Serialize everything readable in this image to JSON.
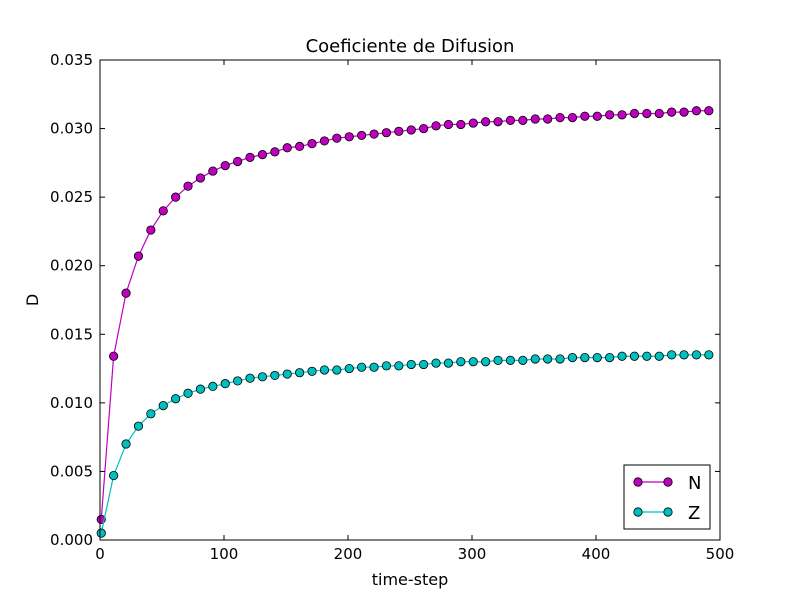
{
  "chart_data": {
    "type": "line",
    "title": "Coeficiente de Difusion",
    "xlabel": "time-step",
    "ylabel": "D",
    "xlim": [
      0,
      500
    ],
    "ylim": [
      0,
      0.035
    ],
    "xticks": [
      0,
      100,
      200,
      300,
      400,
      500
    ],
    "xtick_labels": [
      "0",
      "100",
      "200",
      "300",
      "400",
      "500"
    ],
    "yticks": [
      0,
      0.005,
      0.01,
      0.015,
      0.02,
      0.025,
      0.03,
      0.035
    ],
    "ytick_labels": [
      "0.000",
      "0.005",
      "0.010",
      "0.015",
      "0.020",
      "0.025",
      "0.030",
      "0.035"
    ],
    "grid": false,
    "legend_position": "lower-right",
    "x": [
      1,
      11,
      21,
      31,
      41,
      51,
      61,
      71,
      81,
      91,
      101,
      111,
      121,
      131,
      141,
      151,
      161,
      171,
      181,
      191,
      201,
      211,
      221,
      231,
      241,
      251,
      261,
      271,
      281,
      291,
      301,
      311,
      321,
      331,
      341,
      351,
      361,
      371,
      381,
      391,
      401,
      411,
      421,
      431,
      441,
      451,
      461,
      471,
      481,
      491
    ],
    "series": [
      {
        "name": "N",
        "color": "#bf00bf",
        "marker": "circle",
        "values": [
          0.0015,
          0.0134,
          0.018,
          0.0207,
          0.0226,
          0.024,
          0.025,
          0.0258,
          0.0264,
          0.0269,
          0.0273,
          0.0276,
          0.0279,
          0.0281,
          0.0283,
          0.0286,
          0.0287,
          0.0289,
          0.0291,
          0.0293,
          0.0294,
          0.0295,
          0.0296,
          0.0297,
          0.0298,
          0.0299,
          0.03,
          0.0302,
          0.0303,
          0.0303,
          0.0304,
          0.0305,
          0.0305,
          0.0306,
          0.0306,
          0.0307,
          0.0307,
          0.0308,
          0.0308,
          0.0309,
          0.0309,
          0.031,
          0.031,
          0.0311,
          0.0311,
          0.0311,
          0.0312,
          0.0312,
          0.0313,
          0.0313
        ]
      },
      {
        "name": "Z",
        "color": "#00bfbf",
        "marker": "circle",
        "values": [
          0.0005,
          0.0047,
          0.007,
          0.0083,
          0.0092,
          0.0098,
          0.0103,
          0.0107,
          0.011,
          0.0112,
          0.0114,
          0.0116,
          0.0118,
          0.0119,
          0.012,
          0.0121,
          0.0122,
          0.0123,
          0.0124,
          0.0124,
          0.0125,
          0.0126,
          0.0126,
          0.0127,
          0.0127,
          0.0128,
          0.0128,
          0.0129,
          0.0129,
          0.013,
          0.013,
          0.013,
          0.0131,
          0.0131,
          0.0131,
          0.0132,
          0.0132,
          0.0132,
          0.0133,
          0.0133,
          0.0133,
          0.0133,
          0.0134,
          0.0134,
          0.0134,
          0.0134,
          0.0135,
          0.0135,
          0.0135,
          0.0135
        ]
      }
    ]
  }
}
